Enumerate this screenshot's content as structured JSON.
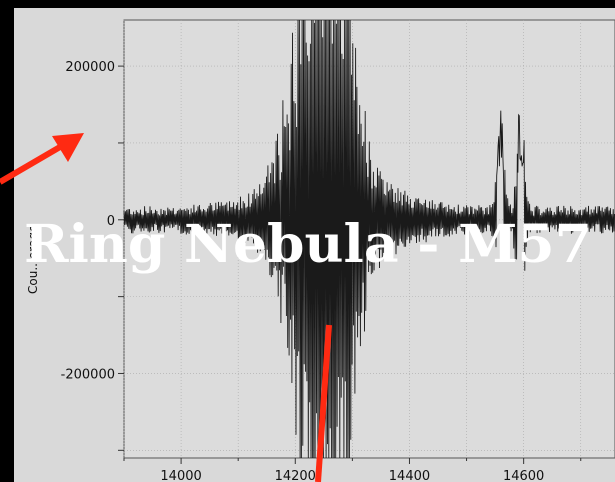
{
  "overlay": {
    "title": "Ring Nebula - M57"
  },
  "colors": {
    "background": "#000000",
    "panel": "#d9d9d9",
    "plot_area": "#dcdcdc",
    "trace": "#1a1a1a",
    "grid": "#a9a9a9",
    "arrow": "#ff2a12",
    "overlay_text": "#ffffff"
  },
  "chart_data": {
    "type": "line",
    "ylabel": "Cou...erage",
    "xlim": [
      13900,
      14760
    ],
    "ylim": [
      -310000,
      260000
    ],
    "xticks": [
      14000,
      14200,
      14400,
      14600
    ],
    "xtick_labels": [
      "14000",
      "14200",
      "14400",
      "14600"
    ],
    "yticks": [
      200000,
      0,
      -200000
    ],
    "ytick_labels": [
      "200000",
      "0",
      "-200000"
    ],
    "grid": true,
    "legend": "none",
    "series": [
      {
        "features": [
          {
            "center": 14240,
            "width": 40,
            "amplitude": 330000
          },
          {
            "center": 14265,
            "width": 30,
            "amplitude": 280000
          },
          {
            "center": 14560,
            "width": 6,
            "amplitude": 140000
          },
          {
            "center": 14595,
            "width": 6,
            "amplitude": 160000
          }
        ],
        "baseline_noise": 13000
      }
    ]
  },
  "annotations": [
    {
      "name": "arrow-left",
      "shape": "arrow",
      "color": "#ff2a12"
    },
    {
      "name": "arrow-bottom",
      "shape": "line",
      "color": "#ff2a12"
    }
  ]
}
